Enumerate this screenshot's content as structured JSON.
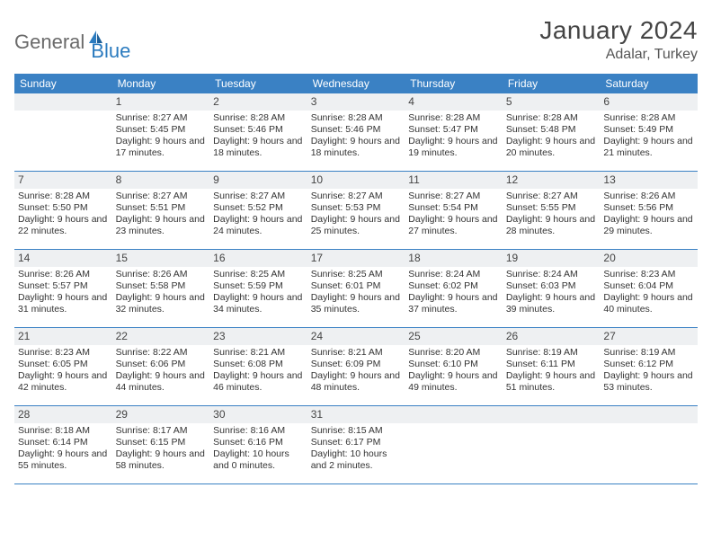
{
  "logo": {
    "part1": "General",
    "part2": "Blue"
  },
  "title": "January 2024",
  "location": "Adalar, Turkey",
  "colors": {
    "header_bg": "#3a81c4",
    "header_text": "#ffffff",
    "daynum_bg": "#eef0f2",
    "border": "#3a81c4",
    "logo_gray": "#6a6a6a",
    "logo_blue": "#2b7bbf",
    "body_text": "#333333"
  },
  "day_names": [
    "Sunday",
    "Monday",
    "Tuesday",
    "Wednesday",
    "Thursday",
    "Friday",
    "Saturday"
  ],
  "weeks": [
    [
      {
        "n": "",
        "sr": "",
        "ss": "",
        "dl": ""
      },
      {
        "n": "1",
        "sr": "Sunrise: 8:27 AM",
        "ss": "Sunset: 5:45 PM",
        "dl": "Daylight: 9 hours and 17 minutes."
      },
      {
        "n": "2",
        "sr": "Sunrise: 8:28 AM",
        "ss": "Sunset: 5:46 PM",
        "dl": "Daylight: 9 hours and 18 minutes."
      },
      {
        "n": "3",
        "sr": "Sunrise: 8:28 AM",
        "ss": "Sunset: 5:46 PM",
        "dl": "Daylight: 9 hours and 18 minutes."
      },
      {
        "n": "4",
        "sr": "Sunrise: 8:28 AM",
        "ss": "Sunset: 5:47 PM",
        "dl": "Daylight: 9 hours and 19 minutes."
      },
      {
        "n": "5",
        "sr": "Sunrise: 8:28 AM",
        "ss": "Sunset: 5:48 PM",
        "dl": "Daylight: 9 hours and 20 minutes."
      },
      {
        "n": "6",
        "sr": "Sunrise: 8:28 AM",
        "ss": "Sunset: 5:49 PM",
        "dl": "Daylight: 9 hours and 21 minutes."
      }
    ],
    [
      {
        "n": "7",
        "sr": "Sunrise: 8:28 AM",
        "ss": "Sunset: 5:50 PM",
        "dl": "Daylight: 9 hours and 22 minutes."
      },
      {
        "n": "8",
        "sr": "Sunrise: 8:27 AM",
        "ss": "Sunset: 5:51 PM",
        "dl": "Daylight: 9 hours and 23 minutes."
      },
      {
        "n": "9",
        "sr": "Sunrise: 8:27 AM",
        "ss": "Sunset: 5:52 PM",
        "dl": "Daylight: 9 hours and 24 minutes."
      },
      {
        "n": "10",
        "sr": "Sunrise: 8:27 AM",
        "ss": "Sunset: 5:53 PM",
        "dl": "Daylight: 9 hours and 25 minutes."
      },
      {
        "n": "11",
        "sr": "Sunrise: 8:27 AM",
        "ss": "Sunset: 5:54 PM",
        "dl": "Daylight: 9 hours and 27 minutes."
      },
      {
        "n": "12",
        "sr": "Sunrise: 8:27 AM",
        "ss": "Sunset: 5:55 PM",
        "dl": "Daylight: 9 hours and 28 minutes."
      },
      {
        "n": "13",
        "sr": "Sunrise: 8:26 AM",
        "ss": "Sunset: 5:56 PM",
        "dl": "Daylight: 9 hours and 29 minutes."
      }
    ],
    [
      {
        "n": "14",
        "sr": "Sunrise: 8:26 AM",
        "ss": "Sunset: 5:57 PM",
        "dl": "Daylight: 9 hours and 31 minutes."
      },
      {
        "n": "15",
        "sr": "Sunrise: 8:26 AM",
        "ss": "Sunset: 5:58 PM",
        "dl": "Daylight: 9 hours and 32 minutes."
      },
      {
        "n": "16",
        "sr": "Sunrise: 8:25 AM",
        "ss": "Sunset: 5:59 PM",
        "dl": "Daylight: 9 hours and 34 minutes."
      },
      {
        "n": "17",
        "sr": "Sunrise: 8:25 AM",
        "ss": "Sunset: 6:01 PM",
        "dl": "Daylight: 9 hours and 35 minutes."
      },
      {
        "n": "18",
        "sr": "Sunrise: 8:24 AM",
        "ss": "Sunset: 6:02 PM",
        "dl": "Daylight: 9 hours and 37 minutes."
      },
      {
        "n": "19",
        "sr": "Sunrise: 8:24 AM",
        "ss": "Sunset: 6:03 PM",
        "dl": "Daylight: 9 hours and 39 minutes."
      },
      {
        "n": "20",
        "sr": "Sunrise: 8:23 AM",
        "ss": "Sunset: 6:04 PM",
        "dl": "Daylight: 9 hours and 40 minutes."
      }
    ],
    [
      {
        "n": "21",
        "sr": "Sunrise: 8:23 AM",
        "ss": "Sunset: 6:05 PM",
        "dl": "Daylight: 9 hours and 42 minutes."
      },
      {
        "n": "22",
        "sr": "Sunrise: 8:22 AM",
        "ss": "Sunset: 6:06 PM",
        "dl": "Daylight: 9 hours and 44 minutes."
      },
      {
        "n": "23",
        "sr": "Sunrise: 8:21 AM",
        "ss": "Sunset: 6:08 PM",
        "dl": "Daylight: 9 hours and 46 minutes."
      },
      {
        "n": "24",
        "sr": "Sunrise: 8:21 AM",
        "ss": "Sunset: 6:09 PM",
        "dl": "Daylight: 9 hours and 48 minutes."
      },
      {
        "n": "25",
        "sr": "Sunrise: 8:20 AM",
        "ss": "Sunset: 6:10 PM",
        "dl": "Daylight: 9 hours and 49 minutes."
      },
      {
        "n": "26",
        "sr": "Sunrise: 8:19 AM",
        "ss": "Sunset: 6:11 PM",
        "dl": "Daylight: 9 hours and 51 minutes."
      },
      {
        "n": "27",
        "sr": "Sunrise: 8:19 AM",
        "ss": "Sunset: 6:12 PM",
        "dl": "Daylight: 9 hours and 53 minutes."
      }
    ],
    [
      {
        "n": "28",
        "sr": "Sunrise: 8:18 AM",
        "ss": "Sunset: 6:14 PM",
        "dl": "Daylight: 9 hours and 55 minutes."
      },
      {
        "n": "29",
        "sr": "Sunrise: 8:17 AM",
        "ss": "Sunset: 6:15 PM",
        "dl": "Daylight: 9 hours and 58 minutes."
      },
      {
        "n": "30",
        "sr": "Sunrise: 8:16 AM",
        "ss": "Sunset: 6:16 PM",
        "dl": "Daylight: 10 hours and 0 minutes."
      },
      {
        "n": "31",
        "sr": "Sunrise: 8:15 AM",
        "ss": "Sunset: 6:17 PM",
        "dl": "Daylight: 10 hours and 2 minutes."
      },
      {
        "n": "",
        "sr": "",
        "ss": "",
        "dl": ""
      },
      {
        "n": "",
        "sr": "",
        "ss": "",
        "dl": ""
      },
      {
        "n": "",
        "sr": "",
        "ss": "",
        "dl": ""
      }
    ]
  ]
}
